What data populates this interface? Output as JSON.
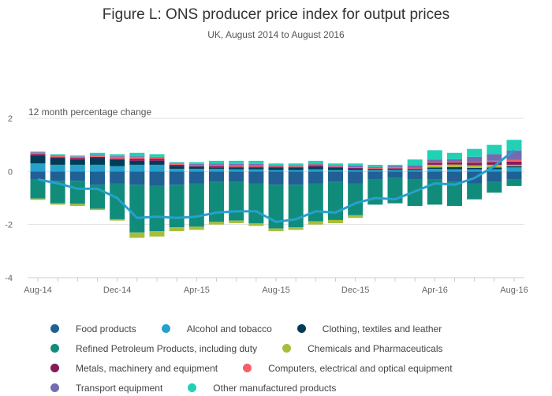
{
  "chart_data": {
    "type": "bar",
    "stacked": true,
    "title": "Figure L: ONS producer price index for output prices",
    "subtitle": "UK, August 2014 to August 2016",
    "ylabel": "12 month percentage change",
    "ylim": [
      -4,
      2
    ],
    "yticks": [
      2,
      0,
      -2,
      -4
    ],
    "grid": true,
    "legend_position": "bottom",
    "categories": [
      "Aug-14",
      "Sep-14",
      "Oct-14",
      "Nov-14",
      "Dec-14",
      "Jan-15",
      "Feb-15",
      "Mar-15",
      "Apr-15",
      "May-15",
      "Jun-15",
      "Jul-15",
      "Aug-15",
      "Sep-15",
      "Oct-15",
      "Nov-15",
      "Dec-15",
      "Jan-16",
      "Feb-16",
      "Mar-16",
      "Apr-16",
      "May-16",
      "Jun-16",
      "Jul-16",
      "Aug-16"
    ],
    "xtick_labels": [
      "Aug-14",
      "Dec-14",
      "Apr-15",
      "Aug-15",
      "Dec-15",
      "Apr-16",
      "Aug-16"
    ],
    "series": [
      {
        "name": "Food products",
        "color": "#206095",
        "values": [
          -0.3,
          -0.35,
          -0.35,
          -0.5,
          -0.45,
          -0.5,
          -0.55,
          -0.5,
          -0.45,
          -0.4,
          -0.4,
          -0.45,
          -0.5,
          -0.5,
          -0.45,
          -0.4,
          -0.45,
          -0.3,
          -0.25,
          -0.3,
          -0.3,
          -0.4,
          -0.45,
          -0.4,
          -0.3
        ]
      },
      {
        "name": "Alcohol and tobacco",
        "color": "#27a0cc",
        "values": [
          0.3,
          0.25,
          0.25,
          0.25,
          0.2,
          0.25,
          0.25,
          0.1,
          0.1,
          0.1,
          0.08,
          0.08,
          0.05,
          0.05,
          0.08,
          0.05,
          0.05,
          0.05,
          0.05,
          0.05,
          0.1,
          0.08,
          0.08,
          0.08,
          0.15
        ]
      },
      {
        "name": "Clothing, textiles and leather",
        "color": "#003c57",
        "values": [
          0.3,
          0.25,
          0.2,
          0.25,
          0.25,
          0.15,
          0.15,
          0.1,
          0.08,
          0.05,
          0.05,
          0.05,
          0.08,
          0.08,
          0.1,
          0.08,
          0.05,
          0.02,
          0.02,
          0.03,
          0.05,
          0.08,
          0.05,
          0.07,
          0.05
        ]
      },
      {
        "name": "Refined Petroleum Products, including duty",
        "color": "#118c7b",
        "values": [
          -0.72,
          -0.85,
          -0.87,
          -0.9,
          -1.35,
          -1.8,
          -1.7,
          -1.6,
          -1.63,
          -1.5,
          -1.45,
          -1.5,
          -1.65,
          -1.6,
          -1.43,
          -1.43,
          -1.2,
          -0.95,
          -0.95,
          -1.0,
          -0.95,
          -0.9,
          -0.6,
          -0.4,
          -0.25
        ]
      },
      {
        "name": "Chemicals and Pharmaceuticals",
        "color": "#a8bd3a",
        "values": [
          -0.05,
          -0.05,
          -0.08,
          -0.05,
          -0.05,
          -0.2,
          -0.2,
          -0.15,
          -0.12,
          -0.1,
          -0.1,
          -0.1,
          -0.1,
          -0.1,
          -0.12,
          -0.12,
          -0.1,
          0,
          0,
          0,
          0.1,
          0.1,
          0.1,
          0.1,
          0.05
        ]
      },
      {
        "name": "Metals, machinery and equipment",
        "color": "#871a5b",
        "values": [
          0.05,
          0.03,
          0.05,
          0.05,
          0.03,
          0.07,
          0.07,
          0.05,
          0.03,
          0.05,
          0.05,
          0.05,
          0.05,
          0.03,
          0.05,
          0.03,
          0.03,
          0.03,
          0.05,
          0.03,
          0.08,
          0.08,
          0.1,
          0.1,
          0.12
        ]
      },
      {
        "name": "Computers, electrical and optical equipment",
        "color": "#f66068",
        "values": [
          0.05,
          0.05,
          0.05,
          0.05,
          0.07,
          0.07,
          0.05,
          0.05,
          0.04,
          0.05,
          0.05,
          0.05,
          0.03,
          0.03,
          0.03,
          0.03,
          0.03,
          0.03,
          0.03,
          0.02,
          0.02,
          0.02,
          0.02,
          0.05,
          0.07
        ]
      },
      {
        "name": "Transport equipment",
        "color": "#746cb1",
        "values": [
          0.03,
          0.03,
          0.02,
          0.03,
          0.03,
          0.03,
          0.03,
          0.02,
          0.03,
          0.05,
          0.05,
          0.05,
          0.03,
          0.03,
          0.04,
          0.03,
          0.06,
          0.04,
          0.05,
          0.1,
          0.1,
          0.1,
          0.2,
          0.25,
          0.35
        ]
      },
      {
        "name": "Other manufactured products",
        "color": "#22d0b6",
        "values": [
          0.02,
          0.04,
          0.03,
          0.07,
          0.07,
          0.13,
          0.1,
          0.03,
          0.07,
          0.1,
          0.12,
          0.12,
          0.06,
          0.08,
          0.1,
          0.08,
          0.08,
          0.08,
          0.05,
          0.22,
          0.35,
          0.24,
          0.3,
          0.35,
          0.4
        ]
      }
    ],
    "line": {
      "color": "#27a0cc",
      "values": [
        -0.3,
        -0.45,
        -0.65,
        -0.65,
        -1.0,
        -1.75,
        -1.7,
        -1.75,
        -1.7,
        -1.55,
        -1.5,
        -1.5,
        -1.9,
        -1.8,
        -1.5,
        -1.55,
        -1.2,
        -1.0,
        -1.05,
        -0.75,
        -0.45,
        -0.5,
        -0.25,
        0.2,
        0.8
      ]
    }
  }
}
